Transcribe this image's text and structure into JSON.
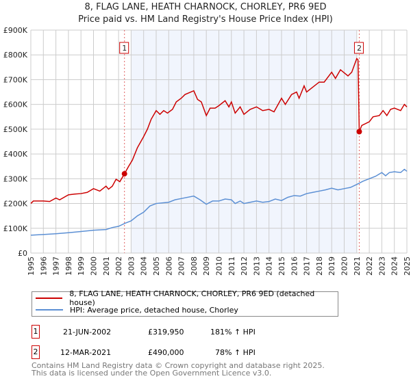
{
  "chart_data": {
    "type": "line",
    "title": "8, FLAG LANE, HEATH CHARNOCK, CHORLEY, PR6 9ED",
    "subtitle": "Price paid vs. HM Land Registry's House Price Index (HPI)",
    "xlim": [
      1995,
      2025
    ],
    "ylim": [
      0,
      900000
    ],
    "y_ticks": [
      {
        "v": 0,
        "label": "£0"
      },
      {
        "v": 100000,
        "label": "£100K"
      },
      {
        "v": 200000,
        "label": "£200K"
      },
      {
        "v": 300000,
        "label": "£300K"
      },
      {
        "v": 400000,
        "label": "£400K"
      },
      {
        "v": 500000,
        "label": "£500K"
      },
      {
        "v": 600000,
        "label": "£600K"
      },
      {
        "v": 700000,
        "label": "£700K"
      },
      {
        "v": 800000,
        "label": "£800K"
      },
      {
        "v": 900000,
        "label": "£900K"
      }
    ],
    "x_ticks": [
      "1995",
      "1996",
      "1997",
      "1998",
      "1999",
      "2000",
      "2001",
      "2002",
      "2003",
      "2004",
      "2005",
      "2006",
      "2007",
      "2008",
      "2009",
      "2010",
      "2011",
      "2012",
      "2013",
      "2014",
      "2015",
      "2016",
      "2017",
      "2018",
      "2019",
      "2020",
      "2021",
      "2022",
      "2023",
      "2024",
      "2025"
    ],
    "grid": true,
    "shaded_range": [
      2003.0,
      2021.0
    ],
    "series": [
      {
        "name": "8, FLAG LANE, HEATH CHARNOCK, CHORLEY, PR6 9ED (detached house)",
        "color": "#cc0000",
        "x": [
          1995,
          1995.2,
          1996,
          1996.5,
          1997,
          1997.3,
          1998,
          1998.5,
          1999,
          1999.5,
          2000,
          2000.5,
          2001,
          2001.2,
          2001.5,
          2001.8,
          2002.1,
          2002.47,
          2002.8,
          2003.1,
          2003.5,
          2004,
          2004.3,
          2004.6,
          2005,
          2005.3,
          2005.6,
          2005.9,
          2006.3,
          2006.6,
          2007,
          2007.3,
          2008,
          2008.3,
          2008.6,
          2009,
          2009.3,
          2009.7,
          2010,
          2010.5,
          2010.8,
          2011,
          2011.3,
          2011.7,
          2012,
          2012.5,
          2013,
          2013.5,
          2014,
          2014.4,
          2015,
          2015.3,
          2015.8,
          2016.2,
          2016.4,
          2016.8,
          2017,
          2017.5,
          2018,
          2018.4,
          2019,
          2019.3,
          2019.7,
          2020.3,
          2020.6,
          2021,
          2021.1,
          2021.2,
          2021.4,
          2022,
          2022.3,
          2022.8,
          2023.1,
          2023.4,
          2023.7,
          2024,
          2024.5,
          2024.8,
          2025
        ],
        "y": [
          200000,
          210000,
          210000,
          208000,
          222000,
          215000,
          235000,
          238000,
          240000,
          245000,
          260000,
          250000,
          270000,
          258000,
          270000,
          298000,
          288000,
          319950,
          350000,
          375000,
          425000,
          470000,
          500000,
          540000,
          575000,
          560000,
          575000,
          565000,
          580000,
          610000,
          625000,
          640000,
          655000,
          620000,
          610000,
          555000,
          585000,
          585000,
          595000,
          615000,
          590000,
          610000,
          565000,
          590000,
          560000,
          580000,
          590000,
          575000,
          580000,
          570000,
          625000,
          600000,
          640000,
          650000,
          625000,
          675000,
          650000,
          670000,
          690000,
          690000,
          730000,
          705000,
          740000,
          715000,
          730000,
          785000,
          780000,
          490000,
          515000,
          530000,
          550000,
          555000,
          575000,
          555000,
          580000,
          585000,
          575000,
          600000,
          590000
        ]
      },
      {
        "name": "HPI: Average price, detached house, Chorley",
        "color": "#5b8fd4",
        "x": [
          1995,
          1996,
          1997,
          1998,
          1999,
          2000,
          2001,
          2001.5,
          2002,
          2002.5,
          2003,
          2003.5,
          2004,
          2004.5,
          2005,
          2006,
          2006.5,
          2007,
          2008,
          2008.5,
          2009,
          2009.5,
          2010,
          2010.5,
          2011,
          2011.3,
          2011.7,
          2012,
          2012.5,
          2013,
          2013.5,
          2014,
          2014.5,
          2015,
          2015.5,
          2016,
          2016.5,
          2017,
          2017.5,
          2018,
          2018.5,
          2019,
          2019.5,
          2020,
          2020.5,
          2021,
          2021.5,
          2022,
          2022.5,
          2023,
          2023.3,
          2023.6,
          2024,
          2024.5,
          2024.8,
          2025
        ],
        "y": [
          72000,
          75000,
          78000,
          82000,
          87000,
          92000,
          95000,
          103000,
          108000,
          120000,
          130000,
          150000,
          165000,
          190000,
          200000,
          205000,
          215000,
          220000,
          230000,
          215000,
          197000,
          210000,
          210000,
          218000,
          215000,
          200000,
          210000,
          200000,
          205000,
          210000,
          205000,
          208000,
          218000,
          212000,
          225000,
          232000,
          230000,
          240000,
          245000,
          250000,
          255000,
          262000,
          255000,
          260000,
          265000,
          277000,
          290000,
          300000,
          310000,
          325000,
          312000,
          325000,
          328000,
          325000,
          338000,
          330000
        ]
      }
    ],
    "annotations": [
      {
        "label": "1",
        "date": "21-JUN-2002",
        "x": 2002.47,
        "price": "£319,950",
        "value": 319950,
        "hpi": "181% ↑ HPI"
      },
      {
        "label": "2",
        "date": "12-MAR-2021",
        "x": 2021.2,
        "price": "£490,000",
        "value": 490000,
        "hpi": "78% ↑ HPI"
      }
    ]
  },
  "footer": {
    "line1": "Contains HM Land Registry data © Crown copyright and database right 2025.",
    "line2": "This data is licensed under the Open Government Licence v3.0."
  }
}
